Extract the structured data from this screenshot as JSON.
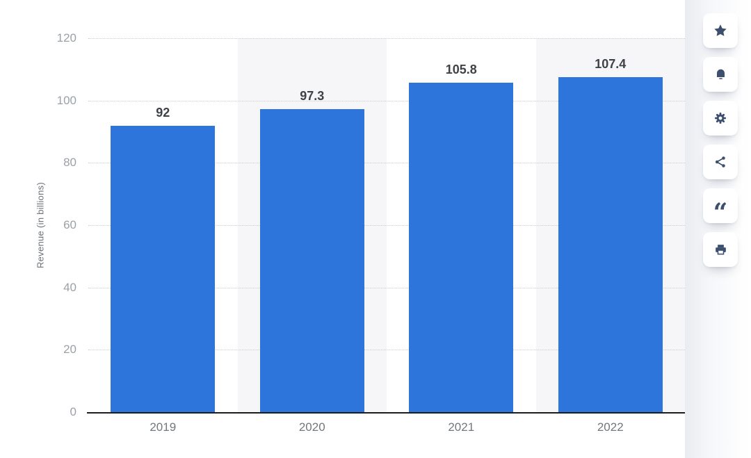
{
  "chart_data": {
    "type": "bar",
    "title": "",
    "categories": [
      "2019",
      "2020",
      "2021",
      "2022"
    ],
    "values": [
      92,
      97.3,
      105.8,
      107.4
    ],
    "value_labels": [
      "92",
      "97.3",
      "105.8",
      "107.4"
    ],
    "xlabel": "",
    "ylabel": "Revenue (in billions)",
    "ylim": [
      0,
      120
    ],
    "yticks": [
      0,
      20,
      40,
      60,
      80,
      100,
      120
    ],
    "grid": "horizontal-dotted",
    "legend": "none",
    "bar_color": "#2d74db",
    "shaded_columns": [
      "2020",
      "2022"
    ]
  },
  "action_sidebar": {
    "icon_color": "#3d4f6e",
    "quote_glyph": "“",
    "buttons": [
      {
        "name": "favorite",
        "icon": "star-icon"
      },
      {
        "name": "notifications",
        "icon": "bell-icon"
      },
      {
        "name": "settings",
        "icon": "gear-icon"
      },
      {
        "name": "share",
        "icon": "share-icon"
      },
      {
        "name": "cite",
        "icon": "quote-icon"
      },
      {
        "name": "print",
        "icon": "print-icon"
      }
    ]
  },
  "colors": {
    "background": "#ffffff",
    "band": "#f6f6f8",
    "grid": "#c9cbce",
    "axis": "#1b1c1e",
    "y_tick_label": "#9ba1a8",
    "x_tick_label": "#72777d",
    "value_label": "#3e4247",
    "panel_left": "#e9ecf1",
    "panel_right": "#ffffff"
  }
}
